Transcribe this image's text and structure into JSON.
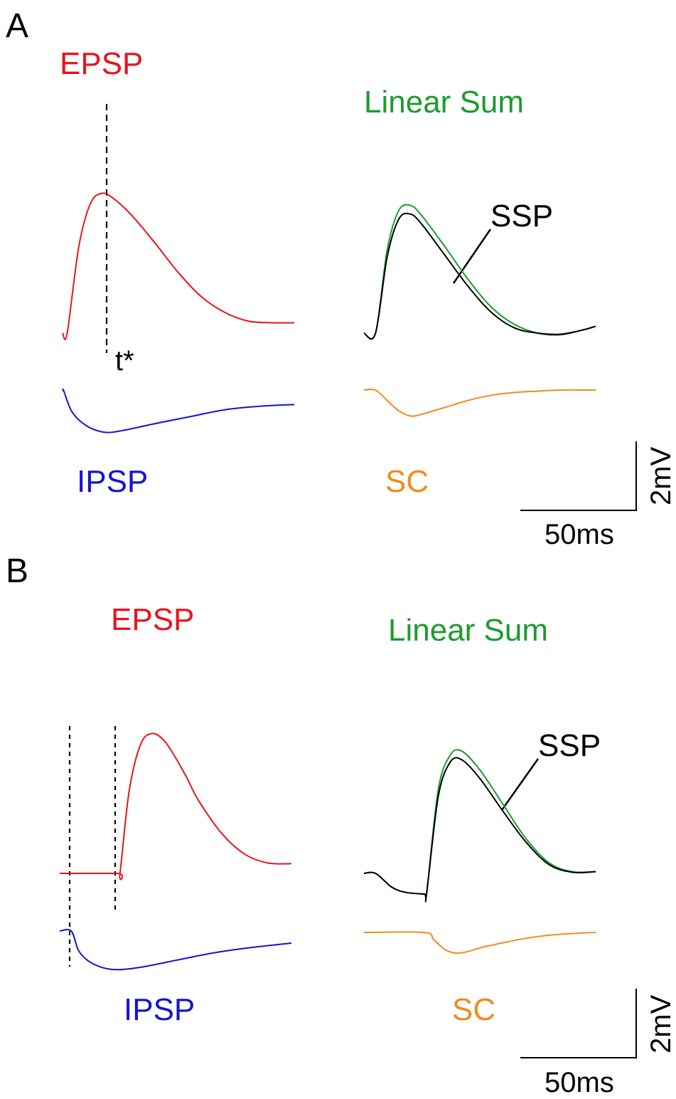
{
  "chart_data": [
    {
      "type": "line",
      "panel": "A",
      "series_left": [
        {
          "name": "EPSP",
          "color": "#e8141c",
          "x": [
            0,
            2,
            7,
            12,
            17,
            22,
            30,
            40,
            50,
            60,
            70,
            80,
            90,
            100
          ],
          "y": [
            0,
            0,
            2.5,
            3.75,
            4.05,
            3.9,
            3.4,
            2.6,
            1.75,
            1.05,
            0.6,
            0.35,
            0.3,
            0.3
          ]
        },
        {
          "name": "IPSP",
          "color": "#1414d2",
          "x": [
            0,
            0.5,
            4,
            10,
            18,
            26,
            40,
            55,
            70,
            85,
            100
          ],
          "y": [
            0,
            0,
            -0.6,
            -1.0,
            -1.2,
            -1.15,
            -0.95,
            -0.75,
            -0.55,
            -0.45,
            -0.4
          ]
        }
      ],
      "series_right": [
        {
          "name": "Linear Sum",
          "color": "#1d9b2d",
          "x": [
            0,
            5,
            10,
            15,
            20,
            25,
            35,
            45,
            55,
            65,
            75,
            85,
            95,
            100
          ],
          "y": [
            0,
            0,
            2.4,
            3.55,
            3.7,
            3.4,
            2.5,
            1.55,
            0.75,
            0.25,
            0,
            -0.05,
            0.1,
            0.2
          ]
        },
        {
          "name": "SSP",
          "color": "#000000",
          "x": [
            0,
            5,
            10,
            15,
            20,
            25,
            35,
            45,
            55,
            65,
            75,
            85,
            95,
            100
          ],
          "y": [
            0,
            0,
            2.2,
            3.3,
            3.45,
            3.15,
            2.25,
            1.35,
            0.6,
            0.15,
            0,
            -0.03,
            0.1,
            0.2
          ]
        },
        {
          "name": "SC",
          "color": "#f08c1e",
          "x": [
            0,
            5,
            10,
            15,
            20,
            25,
            35,
            45,
            55,
            65,
            75,
            85,
            100
          ],
          "y": [
            0,
            0,
            -0.3,
            -0.6,
            -0.75,
            -0.7,
            -0.5,
            -0.3,
            -0.15,
            -0.07,
            -0.03,
            0,
            0
          ]
        }
      ],
      "epsp_peak_marker": {
        "label": "t*",
        "x": 14
      },
      "scalebar": {
        "x_label": "50ms",
        "y_label": "2mV"
      },
      "labels": {
        "epsp": "EPSP",
        "ipsp": "IPSP",
        "linear_sum": "Linear Sum",
        "ssp": "SSP",
        "sc": "SC"
      }
    },
    {
      "type": "line",
      "panel": "B",
      "series_left": [
        {
          "name": "EPSP",
          "color": "#e8141c",
          "x": [
            0,
            25,
            26,
            30,
            35,
            40,
            45,
            50,
            55,
            60,
            70,
            80,
            90,
            100
          ],
          "y": [
            0,
            0,
            0,
            2.4,
            3.75,
            4.05,
            3.85,
            3.35,
            2.75,
            2.1,
            1.15,
            0.55,
            0.3,
            0.28
          ]
        },
        {
          "name": "IPSP",
          "color": "#1414d2",
          "x": [
            0,
            5,
            8,
            12,
            18,
            25,
            35,
            50,
            65,
            80,
            100
          ],
          "y": [
            0,
            0,
            -0.55,
            -0.85,
            -1.05,
            -1.12,
            -1.05,
            -0.85,
            -0.65,
            -0.5,
            -0.35
          ]
        }
      ],
      "series_right": [
        {
          "name": "Linear Sum",
          "color": "#1d9b2d",
          "x": [
            0,
            5,
            12,
            18,
            26,
            27,
            32,
            37,
            42,
            50,
            60,
            70,
            80,
            90,
            100
          ],
          "y": [
            0,
            0,
            -0.4,
            -0.55,
            -0.6,
            -0.6,
            2.4,
            3.4,
            3.55,
            3.0,
            2.0,
            1.0,
            0.3,
            0.05,
            0.05
          ]
        },
        {
          "name": "SSP",
          "color": "#000000",
          "x": [
            0,
            5,
            12,
            18,
            26,
            27,
            32,
            37,
            42,
            50,
            60,
            70,
            80,
            90,
            100
          ],
          "y": [
            0,
            0,
            -0.4,
            -0.55,
            -0.6,
            -0.6,
            2.2,
            3.2,
            3.3,
            2.75,
            1.8,
            0.9,
            0.25,
            0.03,
            0.05
          ]
        },
        {
          "name": "SC",
          "color": "#f08c1e",
          "x": [
            0,
            26,
            30,
            35,
            40,
            45,
            50,
            60,
            70,
            80,
            90,
            100
          ],
          "y": [
            0,
            0,
            -0.2,
            -0.5,
            -0.6,
            -0.55,
            -0.45,
            -0.3,
            -0.17,
            -0.08,
            -0.03,
            0
          ]
        }
      ],
      "scalebar": {
        "x_label": "50ms",
        "y_label": "2mV"
      },
      "labels": {
        "epsp": "EPSP",
        "ipsp": "IPSP",
        "linear_sum": "Linear Sum",
        "ssp": "SSP",
        "sc": "SC"
      }
    }
  ]
}
